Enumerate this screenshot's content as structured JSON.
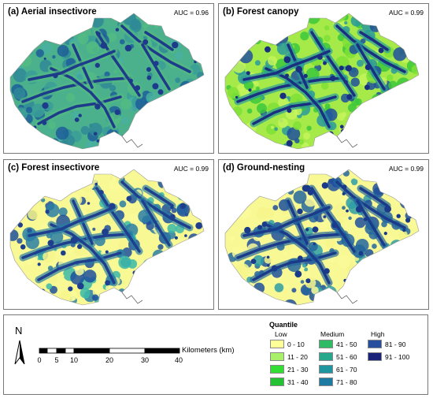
{
  "panels": [
    {
      "title": "(a) Aerial insectivore",
      "auc": "AUC = 0.96",
      "palette": [
        "#48b0a0",
        "#3a9e98",
        "#2f8a96",
        "#52bb82",
        "#1f5f9a"
      ],
      "base": "#4bb08c",
      "accent": "#1e3a8a"
    },
    {
      "title": "(b) Forest canopy",
      "auc": "AUC = 0.99",
      "palette": [
        "#c4f55a",
        "#7ee036",
        "#3cc83c",
        "#2a9a9a",
        "#1e4f9c"
      ],
      "base": "#a6ea4a",
      "accent": "#1a2f80"
    },
    {
      "title": "(c) Forest insectivore",
      "auc": "AUC = 0.99",
      "palette": [
        "#fafa9a",
        "#f6f68c",
        "#3cb8a8",
        "#2a7ea4",
        "#1e4f9c"
      ],
      "base": "#f8f894",
      "accent": "#1e3f8e"
    },
    {
      "title": "(d) Ground-nesting",
      "auc": "AUC = 0.99",
      "palette": [
        "#fafa9a",
        "#f6f68c",
        "#2e9ea6",
        "#23669e",
        "#1e4f9c"
      ],
      "base": "#f8f894",
      "accent": "#1a3a8a"
    }
  ],
  "north_label": "N",
  "scale": {
    "ticks": [
      "0",
      "5",
      "10",
      "20",
      "30",
      "40"
    ],
    "unit": "Kilometers (km)"
  },
  "legend": {
    "title": "Quantile",
    "levels": [
      "Low",
      "Medium",
      "High"
    ],
    "classes": [
      {
        "label": "0 - 10",
        "color": "#ffff99"
      },
      {
        "label": "11 - 20",
        "color": "#a8f06a"
      },
      {
        "label": "21 - 30",
        "color": "#33dd33"
      },
      {
        "label": "31 - 40",
        "color": "#22c233"
      },
      {
        "label": "41 - 50",
        "color": "#2dbb66"
      },
      {
        "label": "51 - 60",
        "color": "#27a88c"
      },
      {
        "label": "61 - 70",
        "color": "#1f95a0"
      },
      {
        "label": "71 - 80",
        "color": "#1c7aa3"
      },
      {
        "label": "81 - 90",
        "color": "#274f9e"
      },
      {
        "label": "91 - 100",
        "color": "#1a237a"
      }
    ]
  }
}
